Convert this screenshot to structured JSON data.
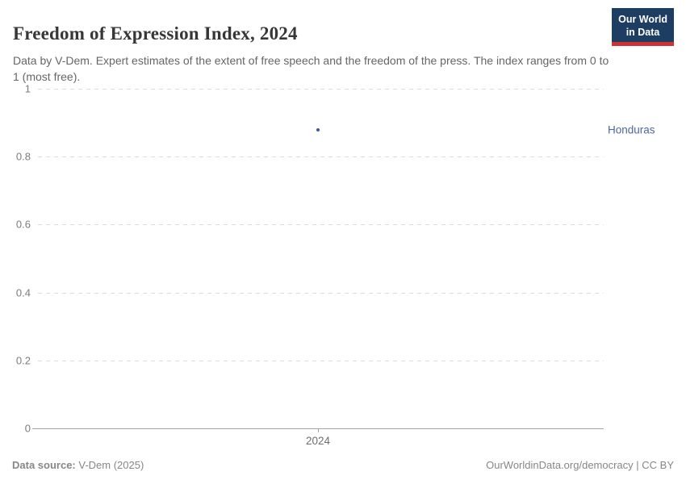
{
  "header": {
    "title": "Freedom of Expression Index, 2024",
    "subtitle": "Data by V-Dem. Expert estimates of the extent of free speech and the freedom of the press. The index ranges from 0 to 1 (most free).",
    "logo": {
      "line1": "Our World",
      "line2": "in Data",
      "bg_color": "#1d3d63",
      "accent_color": "#cf3235"
    }
  },
  "chart_data": {
    "type": "scatter",
    "title": "Freedom of Expression Index, 2024",
    "x": [
      2024
    ],
    "x_tick_labels": [
      "2024"
    ],
    "series": [
      {
        "name": "Honduras",
        "x": 2024,
        "value": 0.88,
        "point_color": "#3d5a9e",
        "label_color": "#4c6a9c"
      }
    ],
    "ylim": [
      0,
      1
    ],
    "yticks": [
      0,
      0.2,
      0.4,
      0.6,
      0.8,
      1
    ],
    "ytick_labels": [
      "0",
      "0.2",
      "0.4",
      "0.6",
      "0.8",
      "1"
    ],
    "grid": "horizontal-dashed",
    "legend_position": "right-inline-label",
    "xlabel": "",
    "ylabel": ""
  },
  "footer": {
    "source_label": "Data source:",
    "source_value": "V-Dem (2025)",
    "credit": "OurWorldinData.org/democracy | CC BY"
  }
}
